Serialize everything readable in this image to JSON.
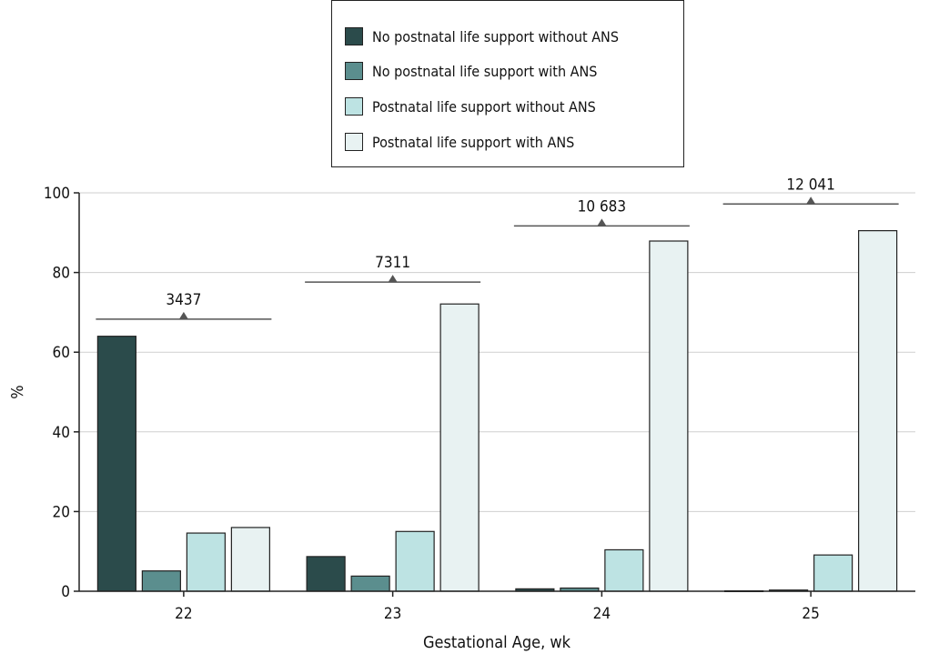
{
  "chart_data": {
    "type": "bar",
    "categories": [
      "22",
      "23",
      "24",
      "25"
    ],
    "xlabel": "Gestational Age, wk",
    "ylabel": "%",
    "ylim": [
      0,
      100
    ],
    "yticks": [
      0,
      20,
      40,
      60,
      80,
      100
    ],
    "grid": true,
    "legend_position": "top-center",
    "series": [
      {
        "name": "No postnatal life support without ANS",
        "color": "#2b4b4b",
        "values": [
          64,
          8.7,
          0.6,
          0.1
        ]
      },
      {
        "name": "No postnatal life support with ANS",
        "color": "#5b8e8e",
        "values": [
          5.1,
          3.8,
          0.8,
          0.3
        ]
      },
      {
        "name": "Postnatal life support without ANS",
        "color": "#bde3e3",
        "values": [
          14.6,
          15,
          10.4,
          9.1
        ]
      },
      {
        "name": "Postnatal life support with ANS",
        "color": "#e8f2f2",
        "values": [
          16,
          72.1,
          87.9,
          90.5
        ]
      }
    ],
    "annotations": [
      {
        "category": "22",
        "label": "3437",
        "y": 68.3
      },
      {
        "category": "23",
        "label": "7311",
        "y": 77.6
      },
      {
        "category": "24",
        "label": "10 683",
        "y": 91.7
      },
      {
        "category": "25",
        "label": "12 041",
        "y": 97.2
      }
    ]
  }
}
